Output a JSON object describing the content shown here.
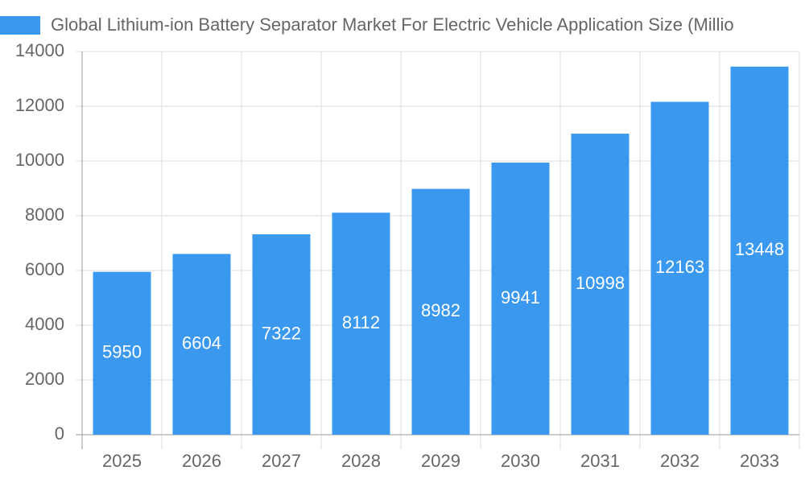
{
  "chart_data": {
    "type": "bar",
    "series": [
      {
        "name": "Global Lithium-ion Battery Separator Market For Electric Vehicle Application Size (Millio",
        "color": "#3a99ee",
        "values": [
          5950,
          6604,
          7322,
          8112,
          8982,
          9941,
          10998,
          12163,
          13448
        ]
      }
    ],
    "categories": [
      "2025",
      "2026",
      "2027",
      "2028",
      "2029",
      "2030",
      "2031",
      "2032",
      "2033"
    ],
    "ylim": [
      0,
      14000
    ],
    "yticks": [
      0,
      2000,
      4000,
      6000,
      8000,
      10000,
      12000,
      14000
    ],
    "grid": true
  }
}
